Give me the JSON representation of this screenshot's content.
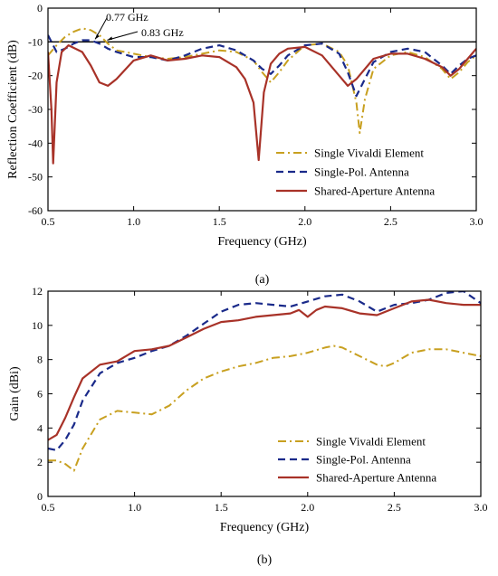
{
  "colors": {
    "vivaldi": "#c8a020",
    "singlepol": "#1a2a8a",
    "shared": "#a83228"
  },
  "chart_data": [
    {
      "type": "line",
      "title": "",
      "xlabel": "Frequency (GHz)",
      "ylabel": "Reflection Coefficient (dB)",
      "xlim": [
        0.5,
        3.0
      ],
      "ylim": [
        -60,
        0
      ],
      "xticks": [
        "0.5",
        "1.0",
        "1.5",
        "2.0",
        "2.5",
        "3.0"
      ],
      "yticks": [
        "0",
        "-10",
        "-20",
        "-30",
        "-40",
        "-50",
        "-60"
      ],
      "grid": false,
      "legend": "bottom-right",
      "caption": "(a)",
      "reference_line": -10,
      "annotations": [
        {
          "text": "0.77 GHz",
          "x": 0.77,
          "y": -10
        },
        {
          "text": "0.83 GHz",
          "x": 0.83,
          "y": -10
        }
      ],
      "series": [
        {
          "name": "Single Vivaldi Element",
          "x": [
            0.5,
            0.55,
            0.6,
            0.65,
            0.7,
            0.75,
            0.8,
            0.85,
            0.9,
            1.0,
            1.1,
            1.2,
            1.3,
            1.4,
            1.5,
            1.6,
            1.7,
            1.75,
            1.8,
            1.85,
            1.9,
            2.0,
            2.1,
            2.2,
            2.25,
            2.3,
            2.32,
            2.35,
            2.4,
            2.5,
            2.6,
            2.7,
            2.8,
            2.85,
            2.9,
            2.95,
            3.0
          ],
          "y": [
            -14,
            -11,
            -8.5,
            -7,
            -6,
            -6.5,
            -8,
            -10.5,
            -12.5,
            -13.5,
            -14.5,
            -15,
            -14.5,
            -13.5,
            -12.5,
            -13,
            -15.5,
            -19,
            -22,
            -19,
            -15.5,
            -11,
            -10.5,
            -13,
            -17,
            -28,
            -37,
            -27,
            -18,
            -14,
            -13,
            -14.5,
            -18,
            -21,
            -19,
            -16,
            -14
          ]
        },
        {
          "name": "Single-Pol. Antenna",
          "x": [
            0.5,
            0.52,
            0.55,
            0.6,
            0.65,
            0.7,
            0.75,
            0.8,
            0.85,
            0.9,
            1.0,
            1.1,
            1.2,
            1.3,
            1.4,
            1.5,
            1.6,
            1.7,
            1.75,
            1.8,
            1.85,
            1.9,
            2.0,
            2.1,
            2.2,
            2.25,
            2.3,
            2.35,
            2.4,
            2.5,
            2.6,
            2.7,
            2.8,
            2.85,
            2.9,
            2.95,
            3.0
          ],
          "y": [
            -8,
            -10,
            -13,
            -12,
            -10.5,
            -9.5,
            -9.5,
            -10.5,
            -12,
            -13,
            -14.5,
            -14.5,
            -15.5,
            -14,
            -12,
            -11,
            -12.5,
            -15.5,
            -18,
            -19.5,
            -17,
            -14,
            -11,
            -10.5,
            -13.5,
            -19,
            -26,
            -21,
            -16,
            -13,
            -12,
            -13,
            -17,
            -19.5,
            -17,
            -15,
            -14
          ]
        },
        {
          "name": "Shared-Aperture Antenna",
          "x": [
            0.5,
            0.52,
            0.53,
            0.55,
            0.58,
            0.62,
            0.7,
            0.75,
            0.8,
            0.85,
            0.9,
            1.0,
            1.1,
            1.2,
            1.3,
            1.4,
            1.5,
            1.6,
            1.65,
            1.7,
            1.73,
            1.76,
            1.8,
            1.85,
            1.9,
            2.0,
            2.1,
            2.2,
            2.25,
            2.3,
            2.4,
            2.5,
            2.6,
            2.7,
            2.8,
            2.85,
            2.9,
            3.0
          ],
          "y": [
            -13,
            -30,
            -46,
            -22,
            -13,
            -11,
            -13,
            -17,
            -22,
            -23,
            -21,
            -15.5,
            -14,
            -15.5,
            -15,
            -14,
            -14.5,
            -17.5,
            -21,
            -28,
            -45,
            -25,
            -16.5,
            -13.5,
            -12,
            -11.5,
            -14,
            -20,
            -23,
            -21,
            -15,
            -13.5,
            -13.5,
            -15,
            -17.5,
            -20,
            -18,
            -12
          ]
        }
      ]
    },
    {
      "type": "line",
      "title": "",
      "xlabel": "Frequency (GHz)",
      "ylabel": "Gain (dBi)",
      "xlim": [
        0.5,
        3.0
      ],
      "ylim": [
        0,
        12
      ],
      "xticks": [
        "0.5",
        "1.0",
        "1.5",
        "2.0",
        "2.5",
        "3.0"
      ],
      "yticks": [
        "0",
        "2",
        "4",
        "6",
        "8",
        "10",
        "12"
      ],
      "grid": false,
      "legend": "bottom-right",
      "caption": "(b)",
      "series": [
        {
          "name": "Single Vivaldi Element",
          "x": [
            0.5,
            0.55,
            0.6,
            0.65,
            0.7,
            0.8,
            0.9,
            1.0,
            1.1,
            1.2,
            1.3,
            1.4,
            1.5,
            1.6,
            1.7,
            1.8,
            1.9,
            2.0,
            2.1,
            2.15,
            2.2,
            2.3,
            2.4,
            2.45,
            2.5,
            2.6,
            2.7,
            2.8,
            2.9,
            3.0
          ],
          "y": [
            2.1,
            2.1,
            1.9,
            1.5,
            2.8,
            4.5,
            5.0,
            4.9,
            4.8,
            5.3,
            6.2,
            6.9,
            7.3,
            7.6,
            7.8,
            8.1,
            8.2,
            8.4,
            8.7,
            8.8,
            8.7,
            8.2,
            7.7,
            7.6,
            7.8,
            8.4,
            8.6,
            8.6,
            8.4,
            8.2
          ]
        },
        {
          "name": "Single-Pol. Antenna",
          "x": [
            0.5,
            0.55,
            0.6,
            0.65,
            0.7,
            0.8,
            0.9,
            1.0,
            1.1,
            1.2,
            1.3,
            1.4,
            1.5,
            1.6,
            1.7,
            1.8,
            1.9,
            2.0,
            2.1,
            2.2,
            2.3,
            2.4,
            2.5,
            2.6,
            2.7,
            2.8,
            2.9,
            3.0
          ],
          "y": [
            2.8,
            2.7,
            3.3,
            4.2,
            5.6,
            7.2,
            7.8,
            8.1,
            8.5,
            8.8,
            9.4,
            10.1,
            10.8,
            11.2,
            11.3,
            11.2,
            11.1,
            11.4,
            11.7,
            11.8,
            11.4,
            10.8,
            11.2,
            11.3,
            11.5,
            11.9,
            12.0,
            11.3
          ]
        },
        {
          "name": "Shared-Aperture Antenna",
          "x": [
            0.5,
            0.55,
            0.6,
            0.65,
            0.7,
            0.8,
            0.9,
            1.0,
            1.1,
            1.2,
            1.3,
            1.4,
            1.5,
            1.6,
            1.7,
            1.8,
            1.9,
            1.95,
            2.0,
            2.05,
            2.1,
            2.2,
            2.3,
            2.4,
            2.5,
            2.6,
            2.7,
            2.8,
            2.9,
            3.0
          ],
          "y": [
            3.3,
            3.6,
            4.6,
            5.8,
            6.9,
            7.7,
            7.9,
            8.5,
            8.6,
            8.8,
            9.3,
            9.8,
            10.2,
            10.3,
            10.5,
            10.6,
            10.7,
            10.9,
            10.5,
            10.9,
            11.1,
            11.0,
            10.7,
            10.6,
            11.0,
            11.4,
            11.5,
            11.3,
            11.2,
            11.2
          ]
        }
      ]
    }
  ]
}
